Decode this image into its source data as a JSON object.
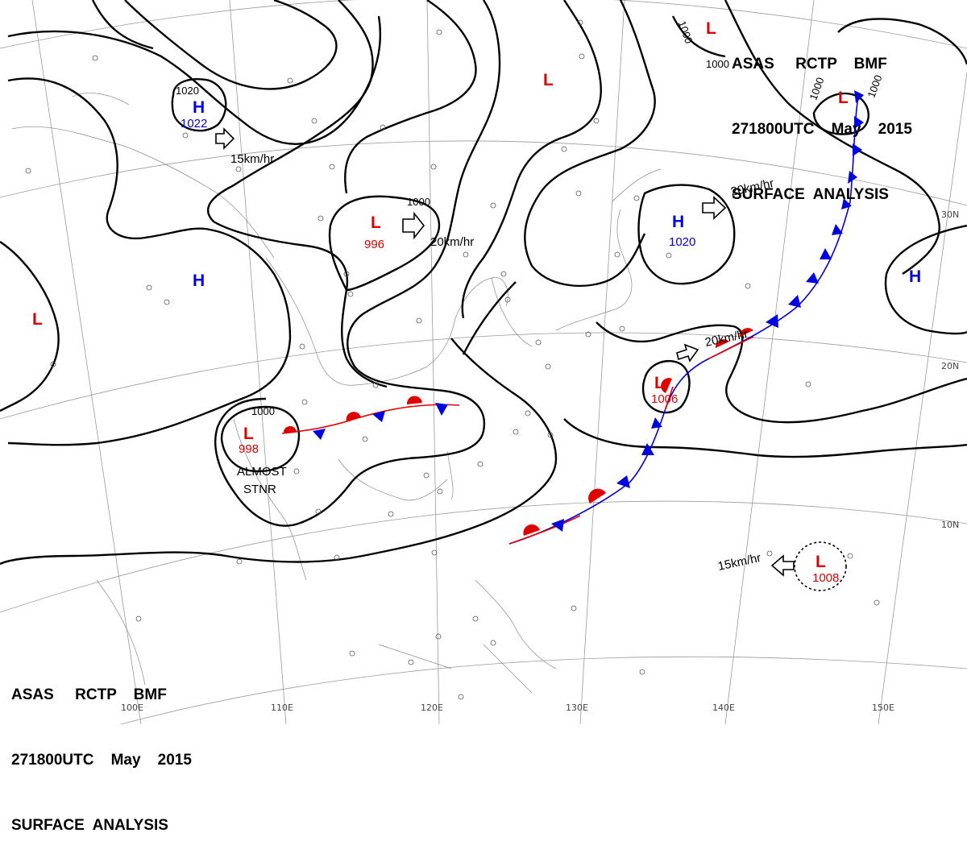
{
  "header": {
    "line1": "ASAS     RCTP    BMF",
    "line2": "271800UTC    May    2015",
    "line3": "SURFACE  ANALYSIS"
  },
  "latitude_labels": [
    "30N",
    "20N",
    "10N"
  ],
  "longitude_labels": [
    "100E",
    "110E",
    "120E",
    "130E",
    "140E",
    "150E"
  ],
  "pressure_centers": [
    {
      "type": "H",
      "value": "1022"
    },
    {
      "type": "L",
      "value": "996"
    },
    {
      "type": "L",
      "value": "998"
    },
    {
      "type": "H",
      "value": ""
    },
    {
      "type": "L",
      "value": ""
    },
    {
      "type": "L",
      "value": ""
    },
    {
      "type": "L",
      "value": ""
    },
    {
      "type": "H",
      "value": "1020"
    },
    {
      "type": "H",
      "value": ""
    },
    {
      "type": "L",
      "value": "1006"
    },
    {
      "type": "L",
      "value": "1008"
    }
  ],
  "isobar_labels": [
    "1020",
    "1000",
    "1000",
    "1000",
    "1000",
    "1000",
    "1000"
  ],
  "movement_labels": [
    "15km/hr",
    "20km/hr",
    "20km/hr",
    "20km/hr",
    "15km/hr"
  ],
  "annotations": [
    "ALMOST",
    "STNR"
  ],
  "colors": {
    "low": "#e00000",
    "high": "#0000e0",
    "warm_front": "#e00000",
    "cold_front": "#0000e0"
  }
}
